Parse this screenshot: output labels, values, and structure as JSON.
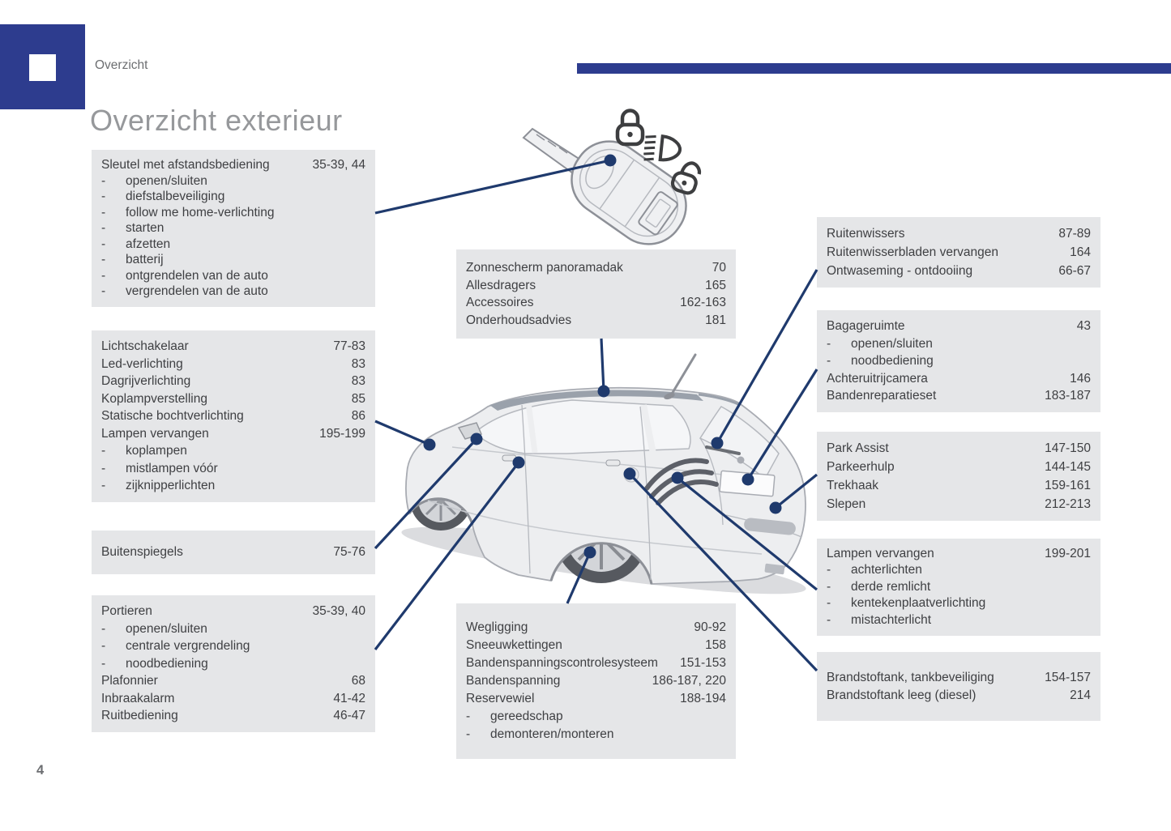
{
  "page": {
    "header_label": "Overzicht",
    "title": "Overzicht exterieur",
    "page_number": "4"
  },
  "ui": {
    "dash": "-"
  },
  "colors": {
    "accent_blue": "#2d3c8e",
    "connector_navy": "#1f3a6d",
    "box_background": "#e5e6e8",
    "text_dark": "#3f4043",
    "title_gray": "#96989b"
  },
  "illustrations": {
    "car": "hatchback rear three-quarter view",
    "key": "flip key with remote buttons",
    "key_icons": [
      "closed-padlock",
      "headlight-beam",
      "open-padlock"
    ]
  },
  "boxes": {
    "key": {
      "rows": [
        {
          "label": "Sleutel met afstandsbediening",
          "pages": "35-39, 44"
        },
        {
          "label": "openen/sluiten",
          "sub": true
        },
        {
          "label": "diefstalbeveiliging",
          "sub": true
        },
        {
          "label": "follow me home-verlichting",
          "sub": true
        },
        {
          "label": "starten",
          "sub": true
        },
        {
          "label": "afzetten",
          "sub": true
        },
        {
          "label": "batterij",
          "sub": true
        },
        {
          "label": "ontgrendelen van de auto",
          "sub": true
        },
        {
          "label": "vergrendelen van de auto",
          "sub": true
        }
      ]
    },
    "lighting": {
      "rows": [
        {
          "label": "Lichtschakelaar",
          "pages": "77-83"
        },
        {
          "label": "Led-verlichting",
          "pages": "83"
        },
        {
          "label": "Dagrijverlichting",
          "pages": "83"
        },
        {
          "label": "Koplampverstelling",
          "pages": "85"
        },
        {
          "label": "Statische bochtverlichting",
          "pages": "86"
        },
        {
          "label": "Lampen vervangen",
          "pages": "195-199"
        },
        {
          "label": "koplampen",
          "sub": true
        },
        {
          "label": "mistlampen vóór",
          "sub": true
        },
        {
          "label": "zijknipperlichten",
          "sub": true
        }
      ]
    },
    "mirrors": {
      "rows": [
        {
          "label": "Buitenspiegels",
          "pages": "75-76"
        }
      ]
    },
    "doors": {
      "rows": [
        {
          "label": "Portieren",
          "pages": "35-39, 40"
        },
        {
          "label": "openen/sluiten",
          "sub": true
        },
        {
          "label": "centrale vergrendeling",
          "sub": true
        },
        {
          "label": "noodbediening",
          "sub": true
        },
        {
          "label": "Plafonnier",
          "pages": "68"
        },
        {
          "label": "Inbraakalarm",
          "pages": "41-42"
        },
        {
          "label": "Ruitbediening",
          "pages": "46-47"
        }
      ]
    },
    "roof": {
      "rows": [
        {
          "label": "Zonnescherm panoramadak",
          "pages": "70"
        },
        {
          "label": "Allesdragers",
          "pages": "165"
        },
        {
          "label": "Accessoires",
          "pages": "162-163"
        },
        {
          "label": "Onderhoudsadvies",
          "pages": "181"
        }
      ]
    },
    "wheels": {
      "rows": [
        {
          "label": "Wegligging",
          "pages": "90-92"
        },
        {
          "label": "Sneeuwkettingen",
          "pages": "158"
        },
        {
          "label": "Bandenspanningscontrolesysteem",
          "pages": "151-153"
        },
        {
          "label": "Bandenspanning",
          "pages": "186-187, 220"
        },
        {
          "label": "Reservewiel",
          "pages": "188-194"
        },
        {
          "label": "gereedschap",
          "sub": true
        },
        {
          "label": "demonteren/monteren",
          "sub": true
        }
      ]
    },
    "wipers": {
      "rows": [
        {
          "label": "Ruitenwissers",
          "pages": "87-89"
        },
        {
          "label": "Ruitenwisserbladen vervangen",
          "pages": "164"
        },
        {
          "label": "Ontwaseming - ontdooiing",
          "pages": "66-67"
        }
      ]
    },
    "boot": {
      "rows": [
        {
          "label": "Bagageruimte",
          "pages": "43"
        },
        {
          "label": "openen/sluiten",
          "sub": true
        },
        {
          "label": "noodbediening",
          "sub": true
        },
        {
          "label": "Achteruitrijcamera",
          "pages": "146"
        },
        {
          "label": "Bandenreparatieset",
          "pages": "183-187"
        }
      ]
    },
    "parking": {
      "rows": [
        {
          "label": "Park Assist",
          "pages": "147-150"
        },
        {
          "label": "Parkeerhulp",
          "pages": "144-145"
        },
        {
          "label": "Trekhaak",
          "pages": "159-161"
        },
        {
          "label": "Slepen",
          "pages": "212-213"
        }
      ]
    },
    "rear_lamps": {
      "rows": [
        {
          "label": "Lampen vervangen",
          "pages": "199-201"
        },
        {
          "label": "achterlichten",
          "sub": true
        },
        {
          "label": "derde remlicht",
          "sub": true
        },
        {
          "label": "kentekenplaatverlichting",
          "sub": true
        },
        {
          "label": "mistachterlicht",
          "sub": true
        }
      ]
    },
    "fuel": {
      "rows": [
        {
          "label": "Brandstoftank, tankbeveiliging",
          "pages": "154-157"
        },
        {
          "label": "Brandstoftank leeg (diesel)",
          "pages": "214"
        }
      ]
    }
  }
}
